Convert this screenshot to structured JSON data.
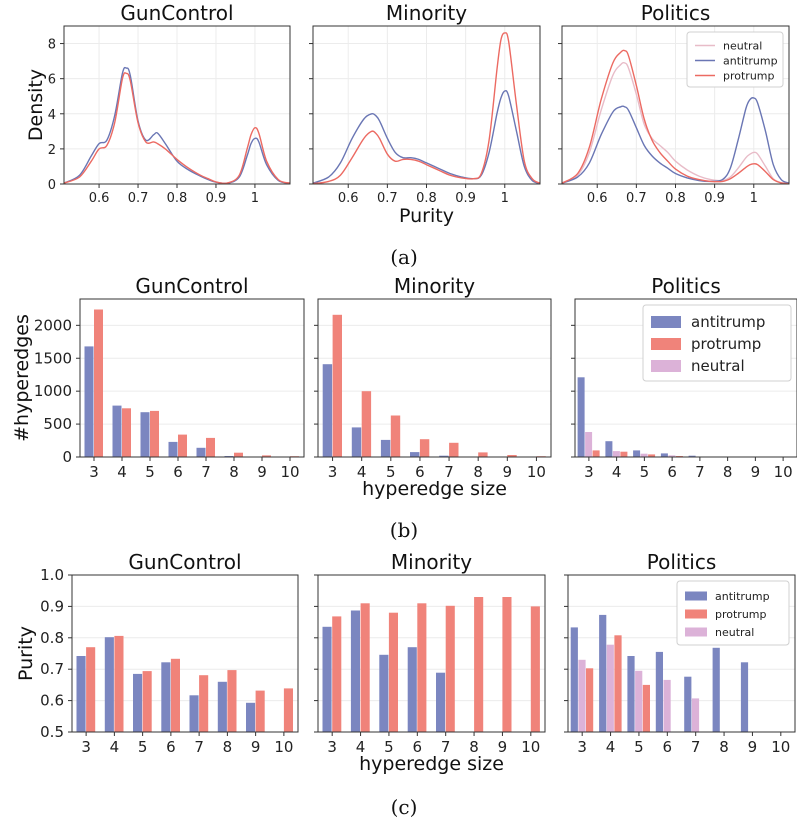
{
  "colors": {
    "antitrump": "#7b86c0",
    "protrump": "#f0837a",
    "neutral": "#dcb2d8",
    "antitrump_line": "#6a76b4",
    "protrump_line": "#ec6a62",
    "neutral_line": "#e8bcc8"
  },
  "captions": [
    "(a)",
    "(b)",
    "(c)"
  ],
  "chart_data": [
    {
      "type": "line",
      "row": "a",
      "title": "GunControl",
      "xlabel": "",
      "ylabel": "Density",
      "xlim": [
        0.51,
        1.09
      ],
      "ylim": [
        0,
        9
      ],
      "xticks": [
        0.6,
        0.7,
        0.8,
        0.9,
        1.0
      ],
      "xticklabels": [
        "0.6",
        "0.7",
        "0.8",
        "0.9",
        "1"
      ],
      "yticks": [
        0,
        2,
        4,
        6,
        8
      ],
      "series": [
        {
          "name": "antitrump",
          "x": [
            0.51,
            0.55,
            0.58,
            0.6,
            0.62,
            0.64,
            0.66,
            0.67,
            0.68,
            0.7,
            0.72,
            0.74,
            0.75,
            0.77,
            0.8,
            0.83,
            0.86,
            0.88,
            0.9,
            0.93,
            0.96,
            0.98,
            0.99,
            1.0,
            1.01,
            1.03,
            1.06,
            1.09
          ],
          "y": [
            0.05,
            0.5,
            1.6,
            2.3,
            2.5,
            3.9,
            6.3,
            6.6,
            6.2,
            3.6,
            2.5,
            2.8,
            2.9,
            2.3,
            1.3,
            0.8,
            0.45,
            0.25,
            0.1,
            0.05,
            0.4,
            1.6,
            2.3,
            2.6,
            2.4,
            1.1,
            0.2,
            0.05
          ]
        },
        {
          "name": "protrump",
          "x": [
            0.51,
            0.55,
            0.58,
            0.6,
            0.62,
            0.64,
            0.66,
            0.67,
            0.68,
            0.7,
            0.72,
            0.74,
            0.75,
            0.77,
            0.8,
            0.83,
            0.86,
            0.88,
            0.9,
            0.93,
            0.96,
            0.98,
            0.99,
            1.0,
            1.01,
            1.03,
            1.06,
            1.09
          ],
          "y": [
            0.05,
            0.4,
            1.3,
            2.0,
            2.2,
            3.5,
            6.0,
            6.3,
            5.9,
            3.5,
            2.4,
            2.4,
            2.3,
            2.0,
            1.4,
            0.9,
            0.5,
            0.3,
            0.12,
            0.06,
            0.5,
            2.0,
            2.8,
            3.2,
            2.9,
            1.3,
            0.25,
            0.05
          ]
        }
      ]
    },
    {
      "type": "line",
      "row": "a",
      "title": "Minority",
      "xlabel": "Purity",
      "ylabel": "",
      "xlim": [
        0.51,
        1.09
      ],
      "ylim": [
        0,
        9
      ],
      "xticks": [
        0.6,
        0.7,
        0.8,
        0.9,
        1.0
      ],
      "xticklabels": [
        "0.6",
        "0.7",
        "0.8",
        "0.9",
        "1"
      ],
      "yticks": [
        0,
        2,
        4,
        6,
        8
      ],
      "series": [
        {
          "name": "antitrump",
          "x": [
            0.51,
            0.55,
            0.58,
            0.61,
            0.64,
            0.66,
            0.67,
            0.68,
            0.7,
            0.72,
            0.74,
            0.76,
            0.78,
            0.8,
            0.83,
            0.86,
            0.89,
            0.92,
            0.94,
            0.96,
            0.98,
            0.99,
            1.0,
            1.01,
            1.03,
            1.05,
            1.07,
            1.09
          ],
          "y": [
            0.05,
            0.4,
            1.2,
            2.6,
            3.7,
            4.0,
            3.9,
            3.6,
            2.6,
            1.8,
            1.5,
            1.5,
            1.4,
            1.2,
            0.9,
            0.6,
            0.4,
            0.3,
            0.5,
            1.8,
            4.0,
            4.9,
            5.3,
            5.0,
            3.0,
            1.0,
            0.2,
            0.05
          ]
        },
        {
          "name": "protrump",
          "x": [
            0.51,
            0.55,
            0.58,
            0.61,
            0.64,
            0.66,
            0.67,
            0.68,
            0.7,
            0.72,
            0.74,
            0.76,
            0.78,
            0.8,
            0.83,
            0.86,
            0.89,
            0.92,
            0.94,
            0.96,
            0.98,
            0.99,
            1.0,
            1.01,
            1.03,
            1.05,
            1.07,
            1.09
          ],
          "y": [
            0.02,
            0.15,
            0.5,
            1.5,
            2.6,
            3.0,
            2.9,
            2.6,
            1.7,
            1.3,
            1.4,
            1.4,
            1.3,
            1.1,
            0.8,
            0.5,
            0.35,
            0.3,
            0.6,
            2.5,
            6.5,
            8.2,
            8.6,
            8.1,
            4.5,
            1.3,
            0.3,
            0.05
          ]
        }
      ]
    },
    {
      "type": "line",
      "row": "a",
      "title": "Politics",
      "xlabel": "",
      "ylabel": "",
      "xlim": [
        0.51,
        1.09
      ],
      "ylim": [
        0,
        9
      ],
      "xticks": [
        0.6,
        0.7,
        0.8,
        0.9,
        1.0
      ],
      "xticklabels": [
        "0.6",
        "0.7",
        "0.8",
        "0.9",
        "1"
      ],
      "yticks": [
        0,
        2,
        4,
        6,
        8
      ],
      "legend_position": "top-right",
      "series": [
        {
          "name": "neutral",
          "x": [
            0.51,
            0.55,
            0.58,
            0.61,
            0.64,
            0.66,
            0.67,
            0.68,
            0.7,
            0.72,
            0.74,
            0.76,
            0.78,
            0.8,
            0.83,
            0.86,
            0.89,
            0.92,
            0.94,
            0.96,
            0.98,
            0.99,
            1.0,
            1.01,
            1.03,
            1.05,
            1.07,
            1.09
          ],
          "y": [
            0.05,
            0.5,
            1.8,
            4.2,
            6.2,
            6.8,
            6.9,
            6.6,
            5.1,
            3.4,
            2.6,
            2.2,
            1.8,
            1.3,
            0.8,
            0.45,
            0.25,
            0.2,
            0.4,
            0.9,
            1.5,
            1.7,
            1.8,
            1.7,
            1.0,
            0.3,
            0.08,
            0.02
          ]
        },
        {
          "name": "antitrump",
          "x": [
            0.51,
            0.55,
            0.58,
            0.61,
            0.64,
            0.66,
            0.67,
            0.68,
            0.7,
            0.72,
            0.74,
            0.76,
            0.78,
            0.8,
            0.83,
            0.86,
            0.89,
            0.92,
            0.94,
            0.96,
            0.98,
            0.99,
            1.0,
            1.01,
            1.03,
            1.05,
            1.07,
            1.09
          ],
          "y": [
            0.05,
            0.4,
            1.2,
            2.8,
            4.1,
            4.4,
            4.4,
            4.2,
            3.2,
            2.2,
            1.6,
            1.2,
            0.9,
            0.6,
            0.35,
            0.2,
            0.15,
            0.25,
            0.9,
            2.5,
            4.3,
            4.8,
            4.9,
            4.6,
            3.0,
            1.1,
            0.25,
            0.05
          ]
        },
        {
          "name": "protrump",
          "x": [
            0.51,
            0.55,
            0.58,
            0.61,
            0.64,
            0.66,
            0.67,
            0.68,
            0.7,
            0.72,
            0.74,
            0.76,
            0.78,
            0.8,
            0.83,
            0.86,
            0.89,
            0.92,
            0.94,
            0.96,
            0.98,
            0.99,
            1.0,
            1.01,
            1.03,
            1.05,
            1.07,
            1.09
          ],
          "y": [
            0.05,
            0.6,
            2.1,
            4.8,
            6.9,
            7.5,
            7.6,
            7.3,
            5.6,
            3.7,
            2.5,
            1.8,
            1.3,
            0.85,
            0.45,
            0.25,
            0.15,
            0.15,
            0.3,
            0.6,
            0.95,
            1.1,
            1.15,
            1.1,
            0.7,
            0.25,
            0.06,
            0.02
          ]
        }
      ]
    },
    {
      "type": "bar",
      "row": "b",
      "title": "GunControl",
      "xlabel": "",
      "ylabel": "#hyperedges",
      "categories": [
        "3",
        "4",
        "5",
        "6",
        "7",
        "8",
        "9",
        "10"
      ],
      "ylim": [
        0,
        2400
      ],
      "yticks": [
        0,
        500,
        1000,
        1500,
        2000
      ],
      "series": [
        {
          "name": "antitrump",
          "values": [
            1680,
            780,
            680,
            230,
            140,
            15,
            5,
            3
          ]
        },
        {
          "name": "protrump",
          "values": [
            2240,
            740,
            700,
            340,
            290,
            65,
            25,
            12
          ]
        }
      ]
    },
    {
      "type": "bar",
      "row": "b",
      "title": "Minority",
      "xlabel": "hyperedge size",
      "ylabel": "",
      "categories": [
        "3",
        "4",
        "5",
        "6",
        "7",
        "8",
        "9",
        "10"
      ],
      "ylim": [
        0,
        2400
      ],
      "yticks": [
        0,
        500,
        1000,
        1500,
        2000
      ],
      "series": [
        {
          "name": "antitrump",
          "values": [
            1410,
            450,
            260,
            75,
            20,
            5,
            2,
            1
          ]
        },
        {
          "name": "protrump",
          "values": [
            2160,
            1000,
            630,
            270,
            215,
            70,
            30,
            12
          ]
        }
      ]
    },
    {
      "type": "bar",
      "row": "b",
      "title": "Politics",
      "xlabel": "",
      "ylabel": "",
      "categories": [
        "3",
        "4",
        "5",
        "6",
        "7",
        "8",
        "9",
        "10"
      ],
      "ylim": [
        0,
        2400
      ],
      "yticks": [
        0,
        500,
        1000,
        1500,
        2000
      ],
      "legend_position": "top-right",
      "series": [
        {
          "name": "antitrump",
          "values": [
            1210,
            240,
            100,
            55,
            20,
            8,
            3,
            2
          ]
        },
        {
          "name": "protrump",
          "values": [
            100,
            80,
            40,
            15,
            5,
            2,
            1,
            0
          ]
        },
        {
          "name": "neutral",
          "values": [
            380,
            90,
            50,
            25,
            8,
            3,
            1,
            0
          ]
        }
      ]
    },
    {
      "type": "bar",
      "row": "c",
      "title": "GunControl",
      "xlabel": "",
      "ylabel": "Purity",
      "categories": [
        "3",
        "4",
        "5",
        "6",
        "7",
        "8",
        "9",
        "10"
      ],
      "ylim": [
        0.5,
        1.0
      ],
      "yticks": [
        0.5,
        0.6,
        0.7,
        0.8,
        0.9,
        1.0
      ],
      "series": [
        {
          "name": "antitrump",
          "values": [
            0.742,
            0.802,
            0.685,
            0.722,
            0.617,
            0.66,
            0.593,
            null
          ]
        },
        {
          "name": "protrump",
          "values": [
            0.77,
            0.806,
            0.694,
            0.733,
            0.681,
            0.697,
            0.632,
            0.639
          ]
        }
      ]
    },
    {
      "type": "bar",
      "row": "c",
      "title": "Minority",
      "xlabel": "hyperedge size",
      "ylabel": "",
      "categories": [
        "3",
        "4",
        "5",
        "6",
        "7",
        "8",
        "9",
        "10"
      ],
      "ylim": [
        0.5,
        1.0
      ],
      "yticks": [
        0.5,
        0.6,
        0.7,
        0.8,
        0.9,
        1.0
      ],
      "series": [
        {
          "name": "antitrump",
          "values": [
            0.835,
            0.887,
            0.746,
            0.77,
            0.689,
            null,
            null,
            null
          ]
        },
        {
          "name": "protrump",
          "values": [
            0.868,
            0.91,
            0.88,
            0.91,
            0.902,
            0.93,
            0.93,
            0.9
          ]
        }
      ]
    },
    {
      "type": "bar",
      "row": "c",
      "title": "Politics",
      "xlabel": "",
      "ylabel": "",
      "categories": [
        "3",
        "4",
        "5",
        "6",
        "7",
        "8",
        "9",
        "10"
      ],
      "ylim": [
        0.5,
        1.0
      ],
      "yticks": [
        0.5,
        0.6,
        0.7,
        0.8,
        0.9,
        1.0
      ],
      "legend_position": "top-right",
      "series": [
        {
          "name": "antitrump",
          "values": [
            0.833,
            0.873,
            0.742,
            0.755,
            0.676,
            0.768,
            0.722,
            null
          ]
        },
        {
          "name": "protrump",
          "values": [
            0.703,
            0.808,
            0.65,
            null,
            null,
            null,
            null,
            null
          ]
        },
        {
          "name": "neutral",
          "values": [
            0.73,
            0.778,
            0.695,
            0.666,
            0.607,
            null,
            null,
            null
          ]
        }
      ]
    }
  ]
}
